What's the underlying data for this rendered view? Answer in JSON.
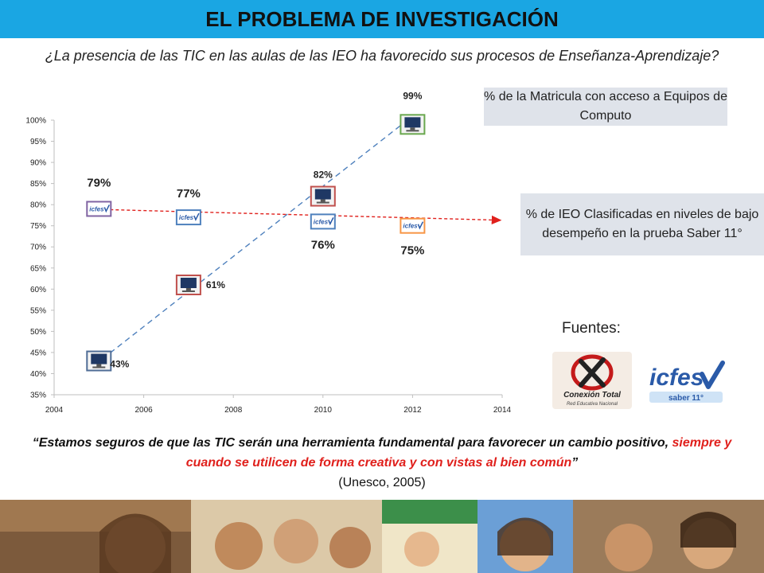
{
  "header": {
    "title": "EL PROBLEMA DE INVESTIGACIÓN"
  },
  "question": "¿La presencia de las TIC en las aulas de las IEO ha favorecido sus procesos de Enseñanza-Aprendizaje?",
  "legend": {
    "matricula": "% de la Matricula con acceso a Equipos de Computo",
    "ieo": "% de IEO Clasificadas en niveles de bajo desempeño en la prueba Saber 11°"
  },
  "sources": {
    "label": "Fuentes:",
    "logo1": {
      "name": "Conexión Total",
      "subtitle": "Red Educativa Nacional"
    },
    "logo2": {
      "name": "icfes",
      "subtitle": "saber 11°"
    }
  },
  "quote": {
    "part1": "“Estamos seguros de que las TIC serán una herramienta fundamental para favorecer un cambio positivo, ",
    "part2_red": "siempre y cuando se utilicen de forma creativa y con vistas al bien común",
    "part3": "”",
    "citation": "(Unesco, 2005)"
  },
  "colors": {
    "title_bar": "#1aa6e3",
    "matricula_line": "#4f81bd",
    "ieo_line": "#e0201c",
    "legend_bg": "#dfe3ea",
    "quote_red": "#e0201c"
  },
  "chart_data": {
    "type": "scatter",
    "x_ticks": [
      2004,
      2006,
      2008,
      2010,
      2012,
      2014
    ],
    "y_ticks": [
      "35%",
      "40%",
      "45%",
      "50%",
      "55%",
      "60%",
      "65%",
      "70%",
      "75%",
      "80%",
      "85%",
      "90%",
      "95%",
      "100%"
    ],
    "xlim": [
      2004,
      2014
    ],
    "ylim": [
      35,
      100
    ],
    "grid": false,
    "series": [
      {
        "name": "% de la Matricula con acceso a Equipos de Computo",
        "icon": "computer-icon",
        "trend": "dashed-blue-arrow",
        "points": [
          {
            "x": 2005,
            "y": 43,
            "label": "43%"
          },
          {
            "x": 2007,
            "y": 61,
            "label": "61%"
          },
          {
            "x": 2010,
            "y": 82,
            "label": "82%"
          },
          {
            "x": 2012,
            "y": 99,
            "label": "99%"
          }
        ]
      },
      {
        "name": "% de IEO Clasificadas en niveles de bajo desempeño en la prueba Saber 11°",
        "icon": "icfes-logo-icon",
        "trend": "dashed-red-arrow",
        "points": [
          {
            "x": 2005,
            "y": 79,
            "label": "79%"
          },
          {
            "x": 2007,
            "y": 77,
            "label": "77%"
          },
          {
            "x": 2010,
            "y": 76,
            "label": "76%"
          },
          {
            "x": 2012,
            "y": 75,
            "label": "75%"
          }
        ]
      }
    ]
  }
}
